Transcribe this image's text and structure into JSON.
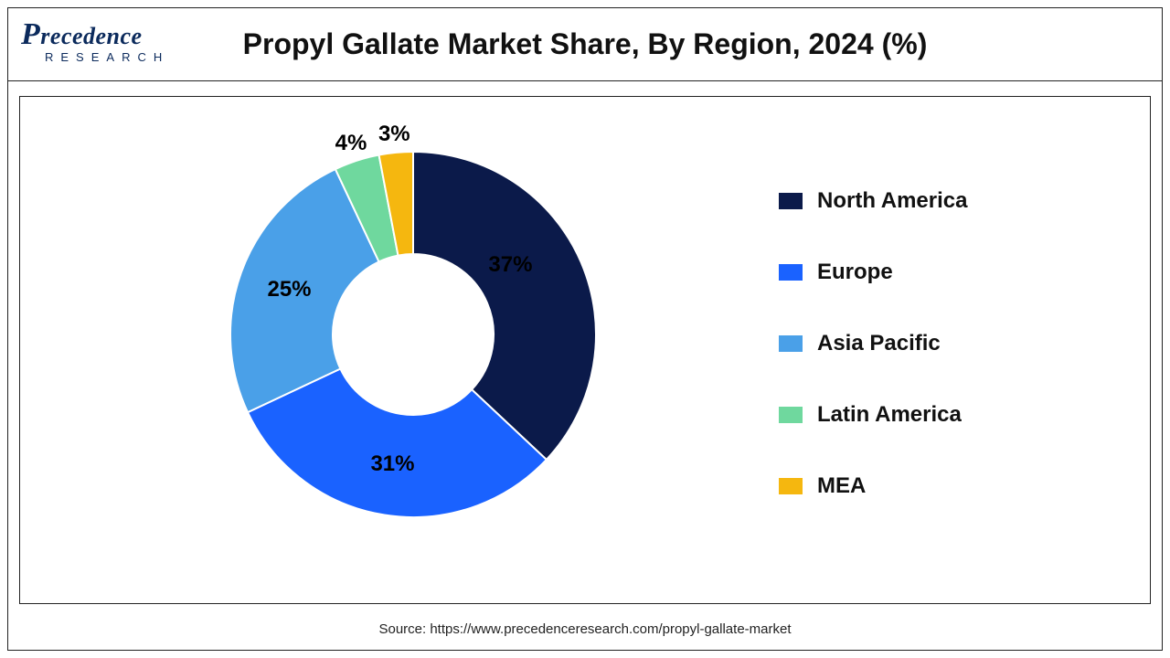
{
  "logo": {
    "main": "Precedence",
    "sub": "RESEARCH"
  },
  "chart": {
    "type": "donut",
    "title": "Propyl Gallate Market Share, By Region, 2024 (%)",
    "background_color": "#ffffff",
    "border_color": "#222222",
    "inner_radius_ratio": 0.44,
    "outer_radius": 200,
    "start_angle_deg": 0,
    "label_fontsize": 24,
    "label_fontweight": "bold",
    "label_color": "#000000",
    "title_fontsize": 32,
    "title_fontweight": "bold",
    "title_color": "#111111",
    "slices": [
      {
        "name": "North America",
        "value": 37,
        "label": "37%",
        "color": "#0b1a4a"
      },
      {
        "name": "Europe",
        "value": 31,
        "label": "31%",
        "color": "#1a62ff"
      },
      {
        "name": "Asia Pacific",
        "value": 25,
        "label": "25%",
        "color": "#4aa0e8"
      },
      {
        "name": "Latin America",
        "value": 4,
        "label": "4%",
        "color": "#6fd89e"
      },
      {
        "name": "MEA",
        "value": 3,
        "label": "3%",
        "color": "#f5b70f"
      }
    ],
    "legend": {
      "position": "right",
      "fontsize": 24,
      "fontweight": "bold",
      "swatch_width": 26,
      "swatch_height": 18,
      "row_gap": 50
    }
  },
  "source": "Source: https://www.precedenceresearch.com/propyl-gallate-market"
}
